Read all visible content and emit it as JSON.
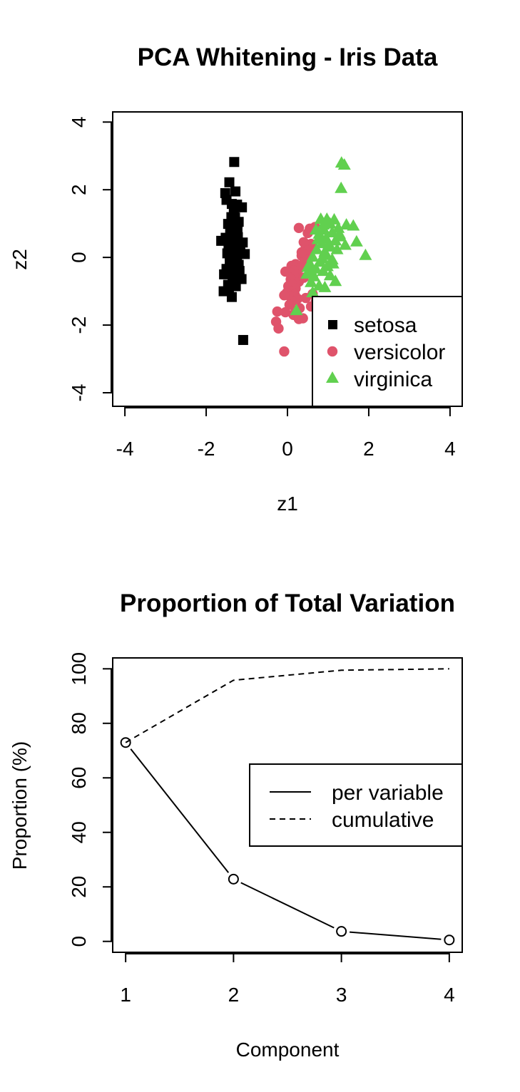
{
  "chart_data": [
    {
      "type": "scatter",
      "title": "PCA Whitening - Iris Data",
      "xlabel": "z1",
      "ylabel": "z2",
      "xlim": [
        -4.3,
        4.3
      ],
      "ylim": [
        -4.4,
        4.3
      ],
      "xticks": [
        -4,
        -2,
        0,
        2,
        4
      ],
      "yticks": [
        -4,
        -2,
        0,
        2,
        4
      ],
      "grid": false,
      "legend_position": "bottom-right",
      "series": [
        {
          "name": "setosa",
          "marker": "square",
          "color": "#000000",
          "points": [
            [
              -1.31,
              2.82
            ],
            [
              -1.43,
              2.22
            ],
            [
              -1.53,
              1.9
            ],
            [
              -1.28,
              1.95
            ],
            [
              -1.37,
              1.58
            ],
            [
              -1.24,
              1.56
            ],
            [
              -1.12,
              1.48
            ],
            [
              -1.38,
              1.19
            ],
            [
              -1.29,
              1.18
            ],
            [
              -1.46,
              0.99
            ],
            [
              -1.34,
              0.95
            ],
            [
              -1.23,
              0.78
            ],
            [
              -1.41,
              0.7
            ],
            [
              -1.3,
              0.62
            ],
            [
              -1.52,
              0.58
            ],
            [
              -1.22,
              0.6
            ],
            [
              -1.36,
              0.46
            ],
            [
              -1.1,
              0.44
            ],
            [
              -1.63,
              0.49
            ],
            [
              -1.27,
              0.38
            ],
            [
              -1.45,
              0.3
            ],
            [
              -1.16,
              0.22
            ],
            [
              -1.33,
              0.17
            ],
            [
              -1.05,
              0.1
            ],
            [
              -1.42,
              0.05
            ],
            [
              -1.24,
              0.0
            ],
            [
              -1.38,
              -0.1
            ],
            [
              -1.2,
              -0.22
            ],
            [
              -1.5,
              -0.34
            ],
            [
              -1.29,
              -0.38
            ],
            [
              -1.4,
              -0.46
            ],
            [
              -1.56,
              -0.5
            ],
            [
              -1.22,
              -0.56
            ],
            [
              -1.13,
              -0.64
            ],
            [
              -1.35,
              -0.72
            ],
            [
              -1.46,
              -0.81
            ],
            [
              -1.27,
              -0.85
            ],
            [
              -1.57,
              -1.0
            ],
            [
              -1.44,
              -0.98
            ],
            [
              -1.37,
              -1.17
            ],
            [
              -1.28,
              -0.7
            ],
            [
              -1.18,
              -0.4
            ],
            [
              -1.48,
              0.12
            ],
            [
              -1.25,
              0.26
            ],
            [
              -1.39,
              0.8
            ],
            [
              -1.2,
              1.05
            ],
            [
              -1.5,
              1.7
            ],
            [
              -1.32,
              1.3
            ],
            [
              -1.42,
              -0.15
            ],
            [
              -1.09,
              -2.44
            ]
          ]
        },
        {
          "name": "versicolor",
          "marker": "circle",
          "color": "#df536b",
          "points": [
            [
              0.28,
              0.87
            ],
            [
              0.55,
              0.85
            ],
            [
              0.68,
              0.9
            ],
            [
              0.5,
              0.72
            ],
            [
              0.4,
              0.45
            ],
            [
              0.58,
              0.4
            ],
            [
              0.45,
              0.32
            ],
            [
              0.62,
              0.28
            ],
            [
              0.48,
              0.2
            ],
            [
              0.35,
              0.05
            ],
            [
              0.52,
              -0.05
            ],
            [
              0.42,
              -0.12
            ],
            [
              0.2,
              -0.2
            ],
            [
              0.1,
              -0.25
            ],
            [
              0.3,
              -0.32
            ],
            [
              0.15,
              -0.38
            ],
            [
              0.05,
              -0.45
            ],
            [
              0.22,
              -0.5
            ],
            [
              -0.05,
              -0.42
            ],
            [
              0.18,
              -0.58
            ],
            [
              0.08,
              -0.65
            ],
            [
              0.28,
              -0.72
            ],
            [
              0.12,
              -0.8
            ],
            [
              0.02,
              -0.85
            ],
            [
              0.2,
              -0.92
            ],
            [
              0.1,
              -1.0
            ],
            [
              -0.02,
              -1.05
            ],
            [
              0.18,
              -1.1
            ],
            [
              0.06,
              -1.15
            ],
            [
              -0.08,
              -1.12
            ],
            [
              0.25,
              -1.22
            ],
            [
              0.12,
              -1.3
            ],
            [
              0.05,
              -1.4
            ],
            [
              0.3,
              -1.5
            ],
            [
              0.2,
              -1.58
            ],
            [
              -0.05,
              -1.62
            ],
            [
              0.15,
              -1.7
            ],
            [
              0.28,
              -1.82
            ],
            [
              0.38,
              -1.8
            ],
            [
              0.58,
              -1.45
            ],
            [
              0.7,
              -1.3
            ],
            [
              0.62,
              -1.08
            ],
            [
              0.4,
              -0.6
            ],
            [
              0.52,
              -0.3
            ],
            [
              0.35,
              0.15
            ],
            [
              -0.25,
              -1.6
            ],
            [
              -0.28,
              -1.9
            ],
            [
              -0.22,
              -2.1
            ],
            [
              -0.08,
              -2.78
            ],
            [
              0.45,
              -1.2
            ]
          ]
        },
        {
          "name": "virginica",
          "marker": "triangle",
          "color": "#61d04f",
          "points": [
            [
              1.33,
              2.78
            ],
            [
              1.4,
              2.72
            ],
            [
              1.32,
              2.03
            ],
            [
              0.82,
              1.12
            ],
            [
              0.97,
              1.12
            ],
            [
              1.15,
              1.1
            ],
            [
              1.62,
              0.92
            ],
            [
              1.05,
              0.98
            ],
            [
              1.25,
              0.85
            ],
            [
              0.9,
              0.8
            ],
            [
              1.1,
              0.72
            ],
            [
              0.78,
              0.68
            ],
            [
              1.3,
              0.6
            ],
            [
              0.95,
              0.55
            ],
            [
              1.7,
              0.45
            ],
            [
              1.18,
              0.48
            ],
            [
              0.85,
              0.4
            ],
            [
              1.42,
              0.35
            ],
            [
              1.05,
              0.3
            ],
            [
              0.72,
              0.22
            ],
            [
              0.92,
              0.15
            ],
            [
              1.92,
              0.05
            ],
            [
              0.62,
              0.0
            ],
            [
              1.1,
              -0.08
            ],
            [
              0.8,
              -0.15
            ],
            [
              0.55,
              -0.2
            ],
            [
              0.98,
              -0.28
            ],
            [
              0.7,
              -0.35
            ],
            [
              0.88,
              -0.42
            ],
            [
              0.48,
              -0.5
            ],
            [
              0.65,
              -0.58
            ],
            [
              1.18,
              -0.72
            ],
            [
              0.92,
              -0.9
            ],
            [
              0.78,
              -0.85
            ],
            [
              0.58,
              -0.75
            ],
            [
              0.62,
              -1.05
            ],
            [
              0.22,
              -1.58
            ],
            [
              1.05,
              -0.55
            ],
            [
              0.95,
              0.05
            ],
            [
              1.22,
              0.22
            ],
            [
              0.88,
              0.95
            ],
            [
              1.02,
              0.38
            ],
            [
              1.12,
              -0.2
            ],
            [
              0.75,
              0.52
            ],
            [
              0.6,
              -0.45
            ],
            [
              1.28,
              0.68
            ],
            [
              0.7,
              0.8
            ],
            [
              0.85,
              -0.05
            ],
            [
              0.5,
              -0.3
            ],
            [
              1.45,
              0.95
            ]
          ]
        }
      ]
    },
    {
      "type": "line",
      "title": "Proportion of Total Variation",
      "xlabel": "Component",
      "ylabel": "Proportion (%)",
      "x": [
        1,
        2,
        3,
        4
      ],
      "xlim": [
        0.88,
        4.12
      ],
      "ylim": [
        -4,
        104
      ],
      "xticks": [
        1,
        2,
        3,
        4
      ],
      "yticks": [
        0,
        20,
        40,
        60,
        80,
        100
      ],
      "grid": false,
      "legend_position": "right",
      "series": [
        {
          "name": "per variable",
          "style": "solid",
          "marker": "open-circle",
          "values": [
            72.96,
            22.85,
            3.67,
            0.52
          ]
        },
        {
          "name": "cumulative",
          "style": "dashed",
          "marker": "none",
          "values": [
            72.96,
            95.81,
            99.48,
            100.0
          ]
        }
      ]
    }
  ]
}
